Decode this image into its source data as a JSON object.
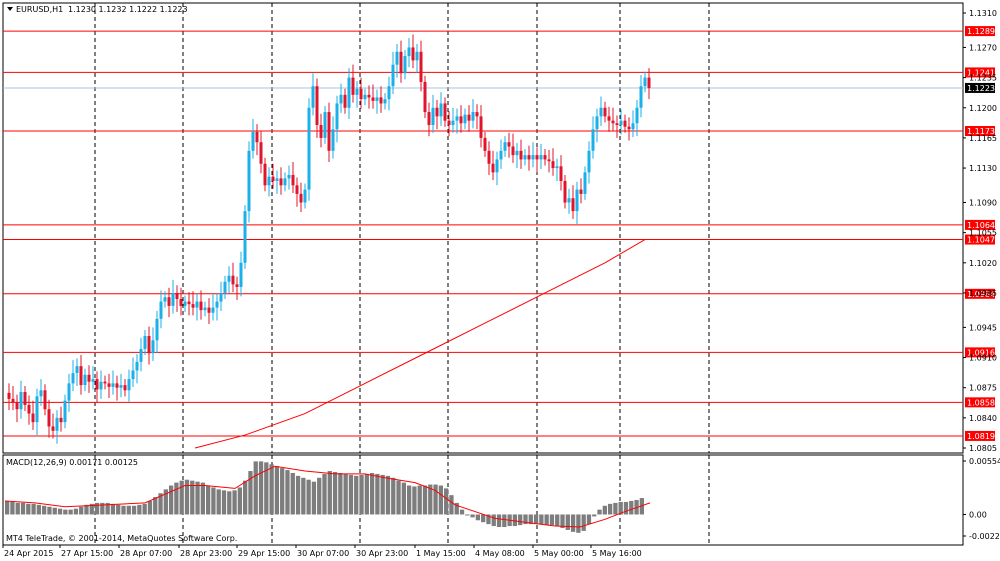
{
  "header": {
    "symbol": "EURUSD,H1",
    "ohlc": "1.1230 1.1232 1.1222 1.1223"
  },
  "macd": {
    "label": "MACD(12,26,9) 0.00171 0.00125",
    "scale_labels": [
      "0.00554",
      "0.00",
      "-0.00223"
    ]
  },
  "copyright": "MT4 TeleTrade, © 2001-2014, MetaQuotes Software Corp.",
  "colors": {
    "bull": "#1ab0e8",
    "bear": "#e0142a",
    "level_line": "#ff0000",
    "ma_line": "#ff0000",
    "current_price_line": "#a9c4dc",
    "tag_bg": "#ff0000",
    "current_tag_bg": "#000000",
    "macd_hist": "#7d7d7d",
    "macd_signal": "#ff0000"
  },
  "chart_data": {
    "type": "candlestick",
    "price_axis": {
      "range": [
        1.0805,
        1.131
      ],
      "tick_labels": [
        "1.1310",
        "1.1270",
        "1.1235",
        "1.1200",
        "1.1165",
        "1.1130",
        "1.1090",
        "1.1055",
        "1.1020",
        "1.0985",
        "1.0945",
        "1.0910",
        "1.0875",
        "1.0840",
        "1.0805"
      ]
    },
    "horizontal_levels": [
      "1.1289",
      "1.1241",
      "1.1173",
      "1.1064",
      "1.1047",
      "1.0984",
      "1.0916",
      "1.0858",
      "1.0819"
    ],
    "current_price": "1.1223",
    "time_axis": {
      "labels": [
        "24 Apr 2015",
        "27 Apr 15:00",
        "28 Apr 07:00",
        "28 Apr 23:00",
        "29 Apr 15:00",
        "30 Apr 07:00",
        "30 Apr 23:00",
        "1 May 15:00",
        "4 May 08:00",
        "5 May 00:00",
        "5 May 16:00"
      ]
    },
    "price_path": [
      [
        0,
        1.0869
      ],
      [
        4,
        1.0862
      ],
      [
        8,
        1.0858
      ],
      [
        12,
        1.085
      ],
      [
        16,
        1.087
      ],
      [
        20,
        1.0855
      ],
      [
        24,
        1.0845
      ],
      [
        28,
        1.0835
      ],
      [
        32,
        1.0865
      ],
      [
        36,
        1.0872
      ],
      [
        40,
        1.085
      ],
      [
        44,
        1.083
      ],
      [
        48,
        1.0825
      ],
      [
        52,
        1.084
      ],
      [
        56,
        1.0835
      ],
      [
        60,
        1.086
      ],
      [
        64,
        1.088
      ],
      [
        68,
        1.0892
      ],
      [
        72,
        1.09
      ],
      [
        76,
        1.0878
      ],
      [
        80,
        1.089
      ],
      [
        84,
        1.0882
      ],
      [
        88,
        1.0885
      ],
      [
        92,
        1.0873
      ],
      [
        96,
        1.0882
      ],
      [
        100,
        1.088
      ],
      [
        104,
        1.0876
      ],
      [
        108,
        1.088
      ],
      [
        112,
        1.0875
      ],
      [
        116,
        1.0878
      ],
      [
        120,
        1.0872
      ],
      [
        124,
        1.0885
      ],
      [
        128,
        1.0895
      ],
      [
        132,
        1.0905
      ],
      [
        136,
        1.092
      ],
      [
        140,
        1.0935
      ],
      [
        144,
        1.0915
      ],
      [
        148,
        1.093
      ],
      [
        152,
        1.0955
      ],
      [
        156,
        1.0975
      ],
      [
        160,
        1.098
      ],
      [
        164,
        1.097
      ],
      [
        168,
        1.0985
      ],
      [
        172,
        1.0978
      ],
      [
        176,
        1.097
      ],
      [
        180,
        1.0975
      ],
      [
        184,
        1.0972
      ],
      [
        188,
        1.0968
      ],
      [
        192,
        1.0975
      ],
      [
        196,
        1.0965
      ],
      [
        200,
        1.0968
      ],
      [
        204,
        1.0962
      ],
      [
        208,
        1.0968
      ],
      [
        212,
        1.0975
      ],
      [
        216,
        1.0985
      ],
      [
        220,
        1.0998
      ],
      [
        224,
        1.1005
      ],
      [
        228,
        1.0995
      ],
      [
        232,
        1.0992
      ],
      [
        236,
        1.102
      ],
      [
        240,
        1.108
      ],
      [
        244,
        1.115
      ],
      [
        248,
        1.1172
      ],
      [
        252,
        1.116
      ],
      [
        256,
        1.1135
      ],
      [
        260,
        1.111
      ],
      [
        264,
        1.112
      ],
      [
        268,
        1.1115
      ],
      [
        272,
        1.1118
      ],
      [
        276,
        1.111
      ],
      [
        280,
        1.1118
      ],
      [
        284,
        1.1122
      ],
      [
        288,
        1.111
      ],
      [
        292,
        1.11
      ],
      [
        296,
        1.109
      ],
      [
        300,
        1.1105
      ],
      [
        304,
        1.12
      ],
      [
        308,
        1.1225
      ],
      [
        312,
        1.118
      ],
      [
        316,
        1.1165
      ],
      [
        320,
        1.1195
      ],
      [
        324,
        1.115
      ],
      [
        328,
        1.1175
      ],
      [
        332,
        1.1205
      ],
      [
        336,
        1.1215
      ],
      [
        340,
        1.12
      ],
      [
        344,
        1.1235
      ],
      [
        348,
        1.1215
      ],
      [
        352,
        1.1222
      ],
      [
        356,
        1.121
      ],
      [
        360,
        1.1215
      ],
      [
        364,
        1.1212
      ],
      [
        368,
        1.1208
      ],
      [
        372,
        1.1212
      ],
      [
        376,
        1.1205
      ],
      [
        380,
        1.121
      ],
      [
        384,
        1.1225
      ],
      [
        388,
        1.125
      ],
      [
        392,
        1.1265
      ],
      [
        396,
        1.124
      ],
      [
        400,
        1.126
      ],
      [
        404,
        1.127
      ],
      [
        408,
        1.1255
      ],
      [
        412,
        1.1265
      ],
      [
        416,
        1.123
      ],
      [
        420,
        1.1195
      ],
      [
        424,
        1.118
      ],
      [
        428,
        1.12
      ],
      [
        432,
        1.119
      ],
      [
        436,
        1.1205
      ],
      [
        440,
        1.1185
      ],
      [
        444,
        1.118
      ],
      [
        448,
        1.1185
      ],
      [
        452,
        1.119
      ],
      [
        456,
        1.1182
      ],
      [
        460,
        1.1192
      ],
      [
        464,
        1.1185
      ],
      [
        468,
        1.1195
      ],
      [
        472,
        1.119
      ],
      [
        476,
        1.1165
      ],
      [
        480,
        1.115
      ],
      [
        484,
        1.1135
      ],
      [
        488,
        1.1125
      ],
      [
        492,
        1.114
      ],
      [
        496,
        1.115
      ],
      [
        500,
        1.116
      ],
      [
        504,
        1.1155
      ],
      [
        508,
        1.1145
      ],
      [
        512,
        1.115
      ],
      [
        516,
        1.114
      ],
      [
        520,
        1.1145
      ],
      [
        524,
        1.114
      ],
      [
        528,
        1.1145
      ],
      [
        532,
        1.114
      ],
      [
        536,
        1.1145
      ],
      [
        540,
        1.114
      ],
      [
        544,
        1.1138
      ],
      [
        548,
        1.113
      ],
      [
        552,
        1.1132
      ],
      [
        556,
        1.1115
      ],
      [
        560,
        1.109
      ],
      [
        564,
        1.1095
      ],
      [
        568,
        1.108
      ],
      [
        572,
        1.1105
      ],
      [
        576,
        1.11
      ],
      [
        580,
        1.1125
      ],
      [
        584,
        1.115
      ],
      [
        588,
        1.1175
      ],
      [
        592,
        1.119
      ],
      [
        596,
        1.12
      ],
      [
        600,
        1.119
      ],
      [
        604,
        1.1185
      ],
      [
        608,
        1.1182
      ],
      [
        612,
        1.118
      ],
      [
        616,
        1.1185
      ],
      [
        620,
        1.1178
      ],
      [
        624,
        1.1175
      ],
      [
        628,
        1.1182
      ],
      [
        632,
        1.12
      ],
      [
        636,
        1.1225
      ],
      [
        640,
        1.1235
      ],
      [
        644,
        1.1223
      ]
    ],
    "moving_average": [
      [
        190,
        1.0805
      ],
      [
        240,
        1.082
      ],
      [
        300,
        1.0845
      ],
      [
        360,
        1.088
      ],
      [
        420,
        1.0915
      ],
      [
        480,
        1.095
      ],
      [
        540,
        1.0985
      ],
      [
        600,
        1.102
      ],
      [
        640,
        1.1047
      ]
    ],
    "macd_histogram": [
      0.0014,
      0.0013,
      0.0012,
      0.0012,
      0.0011,
      0.0011,
      0.001,
      0.0009,
      0.0008,
      0.0007,
      0.0006,
      0.0005,
      0.0005,
      0.0006,
      0.0008,
      0.001,
      0.0011,
      0.0012,
      0.0012,
      0.0012,
      0.0011,
      0.001,
      0.0009,
      0.0009,
      0.0009,
      0.001,
      0.0011,
      0.0014,
      0.0018,
      0.0022,
      0.0026,
      0.003,
      0.0033,
      0.0035,
      0.0036,
      0.0035,
      0.0034,
      0.0033,
      0.003,
      0.0028,
      0.0026,
      0.0025,
      0.0024,
      0.0025,
      0.0028,
      0.0035,
      0.0045,
      0.0055,
      0.0055,
      0.0054,
      0.0052,
      0.005,
      0.0048,
      0.0046,
      0.0043,
      0.004,
      0.0038,
      0.0036,
      0.0034,
      0.0038,
      0.0042,
      0.0045,
      0.0044,
      0.0043,
      0.0042,
      0.0041,
      0.004,
      0.0041,
      0.0042,
      0.0043,
      0.0042,
      0.0041,
      0.004,
      0.0038,
      0.0035,
      0.0033,
      0.003,
      0.0029,
      0.003,
      0.003,
      0.0031,
      0.0031,
      0.003,
      0.0027,
      0.002,
      0.0012,
      0.0005,
      0.0,
      -0.0003,
      -0.0006,
      -0.0008,
      -0.001,
      -0.0012,
      -0.0013,
      -0.0013,
      -0.0012,
      -0.0012,
      -0.0011,
      -0.001,
      -0.001,
      -0.001,
      -0.001,
      -0.0011,
      -0.0011,
      -0.0012,
      -0.0014,
      -0.0016,
      -0.0018,
      -0.0019,
      -0.0017,
      -0.001,
      -0.0002,
      0.0005,
      0.0009,
      0.0011,
      0.0012,
      0.0013,
      0.0013,
      0.0014,
      0.0015,
      0.0017
    ],
    "macd_signal": [
      [
        0,
        0.0014
      ],
      [
        30,
        0.0012
      ],
      [
        60,
        0.0008
      ],
      [
        100,
        0.001
      ],
      [
        140,
        0.0012
      ],
      [
        180,
        0.003
      ],
      [
        200,
        0.003
      ],
      [
        230,
        0.0027
      ],
      [
        250,
        0.004
      ],
      [
        270,
        0.005
      ],
      [
        300,
        0.0045
      ],
      [
        330,
        0.0042
      ],
      [
        360,
        0.0042
      ],
      [
        380,
        0.0038
      ],
      [
        410,
        0.0033
      ],
      [
        430,
        0.0025
      ],
      [
        450,
        0.001
      ],
      [
        470,
        0.0003
      ],
      [
        490,
        -0.0004
      ],
      [
        520,
        -0.0008
      ],
      [
        550,
        -0.0012
      ],
      [
        575,
        -0.0013
      ],
      [
        600,
        -0.0005
      ],
      [
        620,
        0.0003
      ],
      [
        645,
        0.0012
      ]
    ]
  }
}
